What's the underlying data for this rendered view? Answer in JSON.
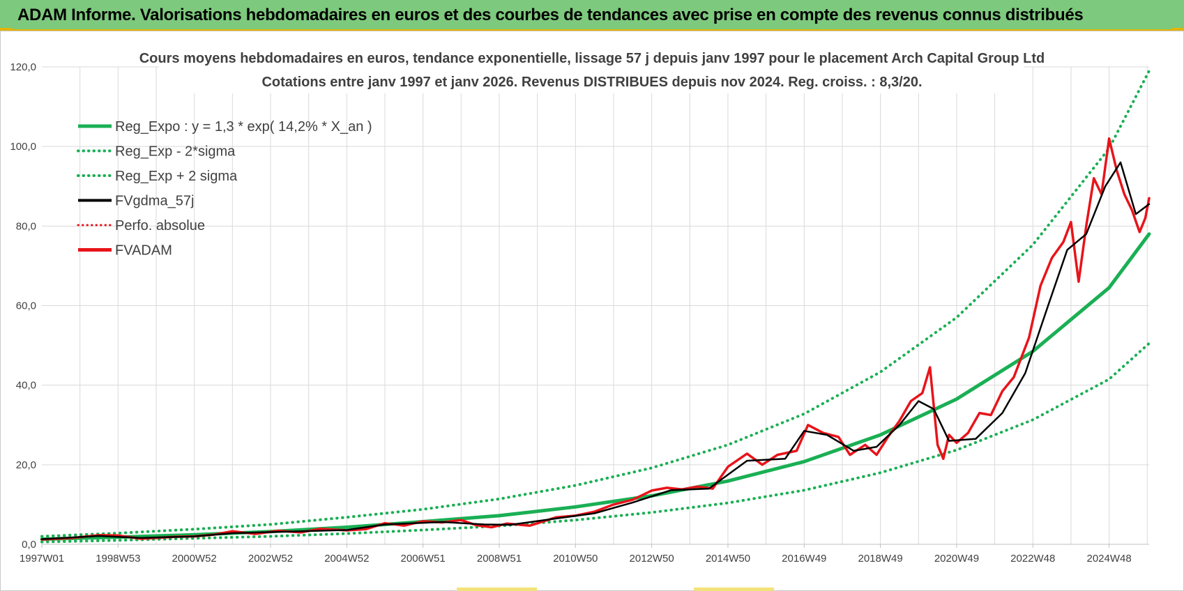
{
  "page": {
    "banner_title": "ADAM Informe. Valorisations hebdomadaires en euros et des courbes de tendances avec prise en compte des revenus connus distribués",
    "colors": {
      "banner_bg": "#7dc97d",
      "accent": "#e3b400",
      "trend_green": "#1aaf54",
      "price_red": "#e8141a",
      "smooth_black": "#000000",
      "grid": "#d9d9d9",
      "text": "#404040"
    }
  },
  "chart_data": {
    "type": "line",
    "title_line1": "Cours moyens hebdomadaires en euros, tendance exponentielle, lissage 57 j depuis janv 1997  pour le placement Arch Capital Group Ltd",
    "title_line2": "Cotations entre janv 1997 et janv 2026. Revenus DISTRIBUES depuis nov 2024.  Reg. croiss. : 8,3/20.",
    "xlabel": "",
    "ylabel": "",
    "ylim": [
      0,
      120
    ],
    "xlim": [
      1997.0,
      2026.05
    ],
    "grid": true,
    "legend_position": "top-left",
    "y_ticks": [
      "0,0",
      "20,0",
      "40,0",
      "60,0",
      "80,0",
      "100,0",
      "120,0"
    ],
    "x_ticks": [
      {
        "label": "1997W01",
        "year": 1997.0
      },
      {
        "label": "1998W53",
        "year": 1999.0
      },
      {
        "label": "2000W52",
        "year": 2001.0
      },
      {
        "label": "2002W52",
        "year": 2003.0
      },
      {
        "label": "2004W52",
        "year": 2005.0
      },
      {
        "label": "2006W51",
        "year": 2007.0
      },
      {
        "label": "2008W51",
        "year": 2009.0
      },
      {
        "label": "2010W50",
        "year": 2011.0
      },
      {
        "label": "2012W50",
        "year": 2013.0
      },
      {
        "label": "2014W50",
        "year": 2015.0
      },
      {
        "label": "2016W49",
        "year": 2017.0
      },
      {
        "label": "2018W49",
        "year": 2019.0
      },
      {
        "label": "2020W49",
        "year": 2021.0
      },
      {
        "label": "2022W48",
        "year": 2023.0
      },
      {
        "label": "2024W48",
        "year": 2025.0
      }
    ],
    "legend": [
      {
        "label": "Reg_Expo : y = 1,3 * exp( 14,2% *  X_an )",
        "style": "solid-green"
      },
      {
        "label": "Reg_Exp - 2*sigma",
        "style": "dotted-green"
      },
      {
        "label": "Reg_Exp + 2 sigma",
        "style": "dotted-green"
      },
      {
        "label": "FVgdma_57j",
        "style": "solid-black"
      },
      {
        "label": "Perfo. absolue",
        "style": "dotted-red"
      },
      {
        "label": "FVADAM",
        "style": "solid-red"
      }
    ],
    "series": [
      {
        "name": "Reg_Expo",
        "x": [
          1997.0,
          1999.0,
          2001.0,
          2003.0,
          2005.0,
          2007.0,
          2009.0,
          2011.0,
          2013.0,
          2015.0,
          2017.0,
          2019.0,
          2021.0,
          2023.0,
          2025.0,
          2026.05
        ],
        "values": [
          1.3,
          1.8,
          2.4,
          3.2,
          4.3,
          5.7,
          7.2,
          9.4,
          12.2,
          15.9,
          20.8,
          27.5,
          36.5,
          48.5,
          64.5,
          78.0
        ]
      },
      {
        "name": "Reg_Exp - 2*sigma",
        "x": [
          1997.0,
          1999.0,
          2001.0,
          2003.0,
          2005.0,
          2007.0,
          2009.0,
          2011.0,
          2013.0,
          2015.0,
          2017.0,
          2019.0,
          2021.0,
          2023.0,
          2025.0,
          2026.05
        ],
        "values": [
          0.6,
          1.0,
          1.5,
          2.0,
          2.7,
          3.6,
          4.6,
          6.1,
          8.0,
          10.4,
          13.6,
          18.0,
          23.7,
          31.3,
          41.5,
          50.5
        ]
      },
      {
        "name": "Reg_Exp + 2 sigma",
        "x": [
          1997.0,
          1999.0,
          2001.0,
          2003.0,
          2005.0,
          2007.0,
          2009.0,
          2011.0,
          2013.0,
          2015.0,
          2017.0,
          2019.0,
          2021.0,
          2023.0,
          2025.0,
          2026.05
        ],
        "values": [
          2.0,
          2.8,
          3.8,
          5.0,
          6.8,
          8.8,
          11.4,
          14.8,
          19.2,
          25.0,
          32.8,
          43.3,
          57.0,
          75.3,
          99.5,
          119.0
        ]
      },
      {
        "name": "FVgdma_57j",
        "x": [
          1997.0,
          1998.5,
          1999.6,
          2001.0,
          2002.0,
          2003.5,
          2005.0,
          2006.0,
          2007.5,
          2008.6,
          2009.3,
          2010.5,
          2011.5,
          2012.5,
          2013.5,
          2014.5,
          2015.5,
          2016.5,
          2017.0,
          2017.6,
          2018.3,
          2018.9,
          2019.5,
          2020.0,
          2020.4,
          2020.8,
          2021.5,
          2022.2,
          2022.8,
          2023.4,
          2023.9,
          2024.4,
          2024.9,
          2025.3,
          2025.7,
          2026.05
        ],
        "values": [
          1.3,
          2.1,
          1.6,
          2.0,
          2.8,
          3.2,
          3.6,
          5.0,
          5.6,
          5.0,
          4.9,
          6.5,
          7.8,
          10.5,
          13.6,
          14.0,
          21.0,
          21.5,
          28.5,
          27.5,
          23.5,
          24.5,
          30.0,
          36.0,
          34.0,
          26.0,
          26.5,
          33.0,
          43.0,
          60.0,
          74.0,
          78.0,
          90.0,
          96.0,
          83.0,
          85.5
        ]
      },
      {
        "name": "FVADAM",
        "x": [
          1997.0,
          1997.8,
          1998.5,
          1999.0,
          1999.6,
          2000.5,
          2001.0,
          2001.5,
          2002.0,
          2002.6,
          2003.2,
          2003.8,
          2004.3,
          2005.0,
          2005.5,
          2006.0,
          2006.5,
          2007.0,
          2007.5,
          2008.0,
          2008.4,
          2008.8,
          2009.2,
          2009.8,
          2010.5,
          2011.0,
          2011.5,
          2012.0,
          2012.5,
          2013.0,
          2013.4,
          2013.8,
          2014.2,
          2014.6,
          2015.0,
          2015.5,
          2015.9,
          2016.3,
          2016.8,
          2017.1,
          2017.5,
          2017.9,
          2018.2,
          2018.6,
          2018.9,
          2019.2,
          2019.5,
          2019.8,
          2020.1,
          2020.3,
          2020.5,
          2020.65,
          2020.8,
          2021.0,
          2021.3,
          2021.6,
          2021.9,
          2022.2,
          2022.5,
          2022.9,
          2023.2,
          2023.5,
          2023.8,
          2024.0,
          2024.2,
          2024.4,
          2024.6,
          2024.8,
          2025.0,
          2025.2,
          2025.4,
          2025.6,
          2025.8,
          2025.95,
          2026.05
        ],
        "values": [
          1.2,
          1.6,
          2.3,
          2.2,
          1.4,
          1.9,
          2.0,
          2.4,
          3.3,
          2.6,
          3.4,
          3.0,
          3.9,
          3.5,
          3.8,
          5.3,
          4.7,
          5.8,
          5.5,
          6.1,
          4.8,
          4.3,
          5.2,
          4.7,
          6.8,
          7.2,
          8.2,
          10.0,
          11.2,
          13.5,
          14.2,
          13.8,
          14.5,
          14.0,
          19.5,
          22.8,
          20.0,
          22.5,
          23.5,
          30.0,
          28.0,
          27.0,
          22.5,
          25.0,
          22.5,
          27.0,
          31.0,
          36.0,
          38.0,
          44.5,
          25.0,
          21.5,
          27.5,
          25.5,
          28.0,
          33.0,
          32.5,
          38.5,
          42.0,
          52.0,
          65.0,
          72.0,
          76.0,
          81.0,
          66.0,
          80.0,
          92.0,
          88.0,
          102.0,
          94.0,
          88.0,
          84.0,
          78.5,
          82.0,
          87.0
        ]
      }
    ]
  }
}
